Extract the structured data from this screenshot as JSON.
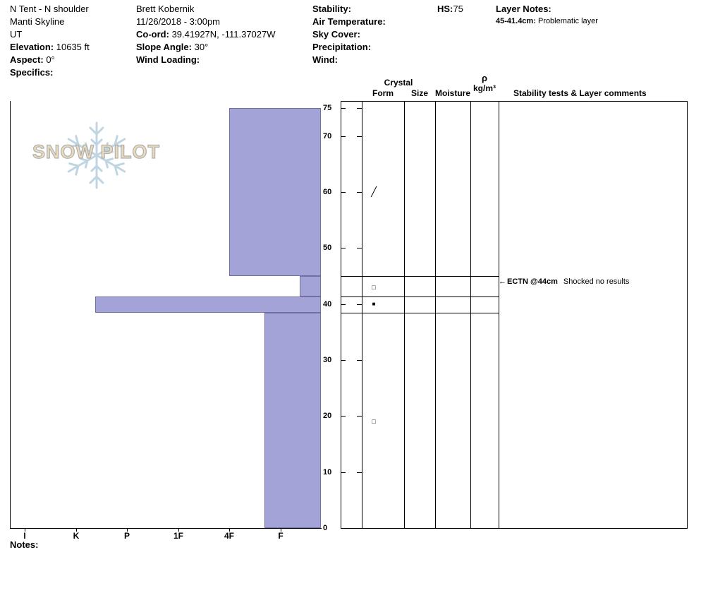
{
  "header": {
    "pit_name": "N Tent - N shoulder",
    "range": "Manti Skyline",
    "state": "UT",
    "elevation_label": "Elevation:",
    "elevation_value": "10635 ft",
    "aspect_label": "Aspect:",
    "aspect_value": "0°",
    "specifics_label": "Specifics:",
    "observer": "Brett Kobernik",
    "datetime": "11/26/2018 - 3:00pm",
    "coord_label": "Co-ord:",
    "coord_value": "39.41927N, -111.37027W",
    "slope_angle_label": "Slope Angle:",
    "slope_angle_value": "30°",
    "wind_loading_label": "Wind Loading:",
    "stability_label": "Stability:",
    "air_temperature_label": "Air Temperature:",
    "sky_cover_label": "Sky Cover:",
    "precipitation_label": "Precipitation:",
    "wind_label": "Wind:",
    "hs_label": "HS:",
    "hs_value": "75",
    "layer_notes_label": "Layer Notes:",
    "layer_note_range": "45-41.4cm:",
    "layer_note_text": "Problematic layer"
  },
  "watermark": {
    "text": "SNOW PILOT"
  },
  "table_headers": {
    "crystal": "Crystal",
    "form": "Form",
    "size": "Size",
    "moisture": "Moisture",
    "rho": "ρ",
    "rho_units": "kg/m³",
    "stability_comments": "Stability tests & Layer comments"
  },
  "notes_label": "Notes:",
  "chart_data": {
    "type": "bar",
    "subtype": "snow-profile-hardness",
    "title": "Snow pit hardness profile",
    "depth_units": "cm",
    "depth_axis_range": [
      0,
      75
    ],
    "depth_ticks": [
      0,
      10,
      20,
      30,
      40,
      50,
      60,
      70,
      75
    ],
    "hardness_labels": [
      "I",
      "K",
      "P",
      "1F",
      "4F",
      "F"
    ],
    "total_height_hs_cm": 75,
    "bar_color": "#a3a3d8",
    "layers": [
      {
        "from_cm": 75,
        "to_cm": 45,
        "hardness": "4F",
        "hardness_index": 4.0
      },
      {
        "from_cm": 45,
        "to_cm": 41.4,
        "hardness": "F",
        "hardness_index": 5.38
      },
      {
        "from_cm": 41.4,
        "to_cm": 38.5,
        "hardness": "K-P",
        "hardness_index": 1.38
      },
      {
        "from_cm": 38.5,
        "to_cm": 0,
        "hardness": "F+",
        "hardness_index": 4.69
      }
    ],
    "layer_boundaries_cm": [
      45,
      41.4,
      38.5
    ],
    "grain_symbols": [
      {
        "depth_cm": 60,
        "symbol": "╱"
      },
      {
        "depth_cm": 43,
        "symbol": "□"
      },
      {
        "depth_cm": 40,
        "symbol": "■"
      },
      {
        "depth_cm": 19,
        "symbol": "□"
      }
    ],
    "stability_tests": [
      {
        "depth_cm": 44,
        "name": "ECTN @44cm",
        "comment": "Shocked no results"
      }
    ]
  }
}
